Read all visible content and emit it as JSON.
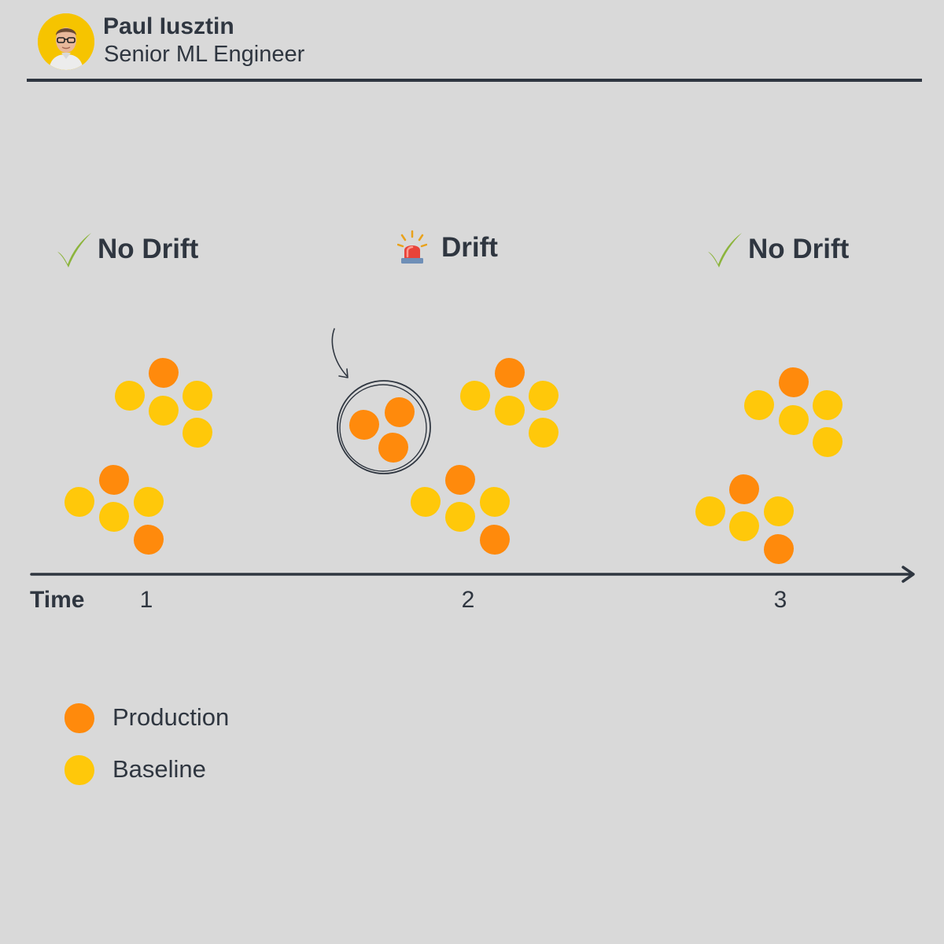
{
  "author": {
    "name": "Paul Iusztin",
    "role": "Senior ML Engineer"
  },
  "timeline": {
    "axis_label": "Time",
    "periods": [
      {
        "tick": "1",
        "status": "No Drift",
        "status_icon": "check-mark-icon"
      },
      {
        "tick": "2",
        "status": "Drift",
        "status_icon": "alarm-siren-icon"
      },
      {
        "tick": "3",
        "status": "No Drift",
        "status_icon": "check-mark-icon"
      }
    ]
  },
  "legend": [
    {
      "label": "Production",
      "color": "#ff8a0c"
    },
    {
      "label": "Baseline",
      "color": "#ffc80a"
    }
  ],
  "colors": {
    "background": "#d9d9d9",
    "text": "#2f3640",
    "production": "#ff8a0c",
    "baseline": "#ffc80a",
    "check": "#8cb43c",
    "avatar_bg": "#f6c400"
  }
}
